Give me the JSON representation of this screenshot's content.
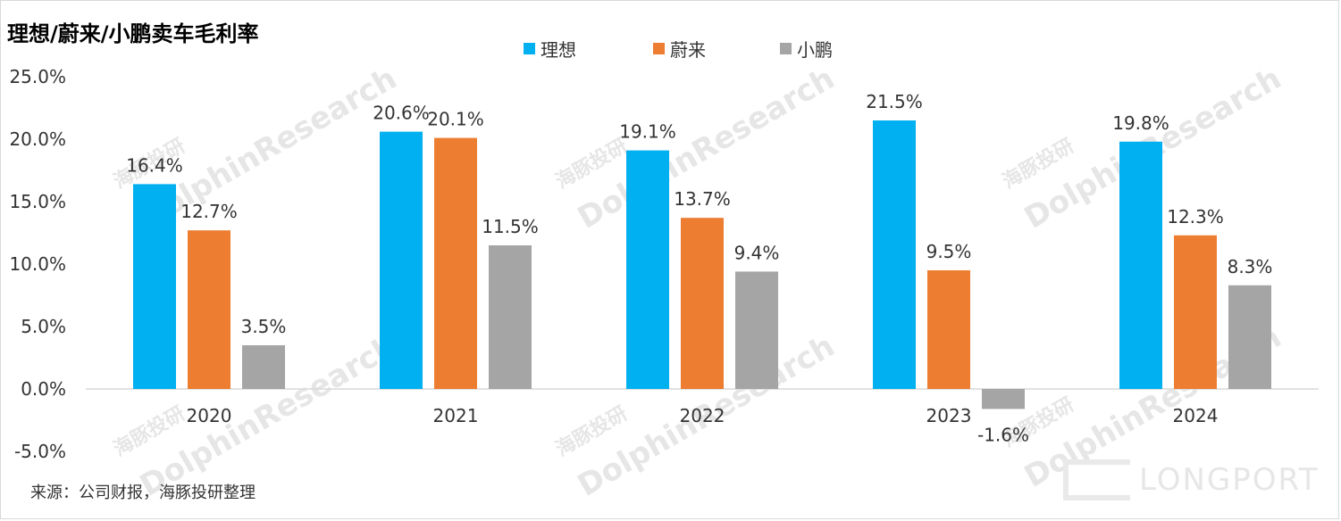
{
  "chart_data": {
    "type": "bar",
    "title": "理想/蔚来/小鹏卖车毛利率",
    "categories": [
      "2020",
      "2021",
      "2022",
      "2023",
      "2024"
    ],
    "series": [
      {
        "name": "理想",
        "color": "#00b0f0",
        "values": [
          16.4,
          20.6,
          19.1,
          21.5,
          19.8
        ],
        "labels": [
          "16.4%",
          "20.6%",
          "19.1%",
          "21.5%",
          "19.8%"
        ]
      },
      {
        "name": "蔚来",
        "color": "#ed7d31",
        "values": [
          12.7,
          20.1,
          13.7,
          9.5,
          12.3
        ],
        "labels": [
          "12.7%",
          "20.1%",
          "13.7%",
          "9.5%",
          "12.3%"
        ]
      },
      {
        "name": "小鹏",
        "color": "#a5a5a5",
        "values": [
          3.5,
          11.5,
          9.4,
          -1.6,
          8.3
        ],
        "labels": [
          "3.5%",
          "11.5%",
          "9.4%",
          "-1.6%",
          "8.3%"
        ]
      }
    ],
    "ylim": [
      -5,
      25
    ],
    "yticks": [
      25,
      20,
      15,
      10,
      5,
      0,
      -5
    ],
    "ytick_labels": [
      "25.0%",
      "20.0%",
      "15.0%",
      "10.0%",
      "5.0%",
      "0.0%",
      "-5.0%"
    ],
    "grid": false,
    "legend": "top-center"
  },
  "source": "来源：公司财报，海豚投研整理",
  "watermark": {
    "brand": "DolphinResearch",
    "cn": "海豚投研",
    "longport": "LONGPORT"
  }
}
